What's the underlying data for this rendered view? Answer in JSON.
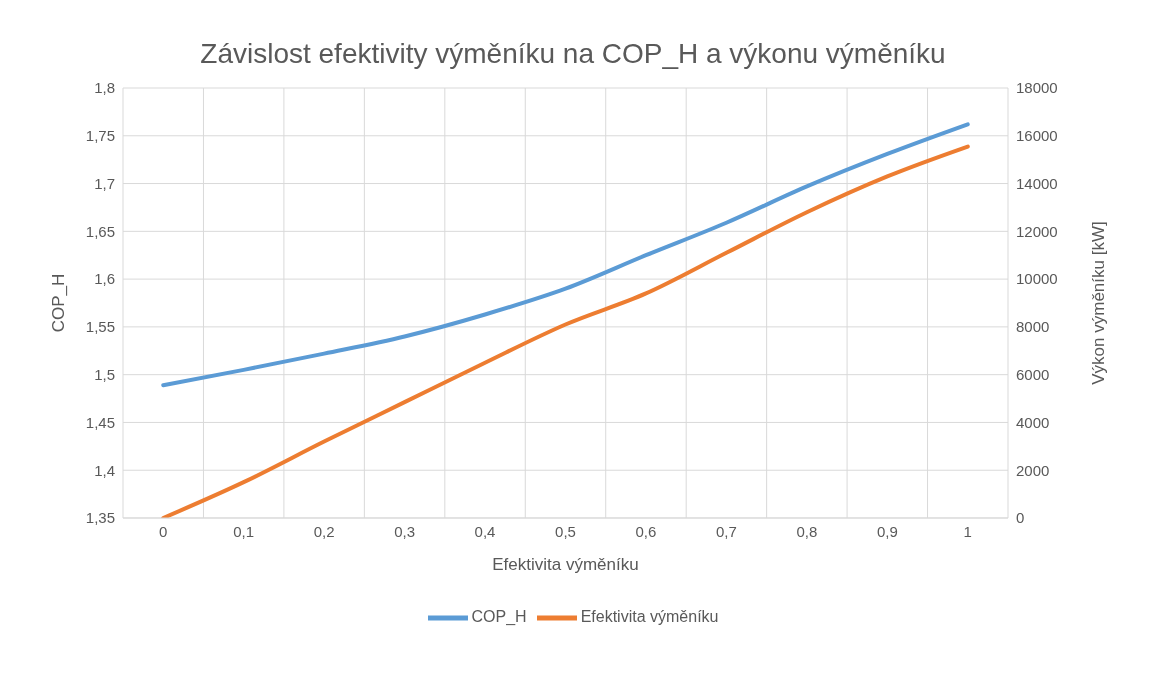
{
  "chart_data": {
    "type": "line",
    "title": "Závislost efektivity výměníku na COP_H a výkonu výměníku",
    "xlabel": "Efektivita výměníku",
    "ylabel": "COP_H",
    "y2label": "Výkon výměníku [kW]",
    "categories": [
      "0",
      "0,1",
      "0,2",
      "0,3",
      "0,4",
      "0,5",
      "0,6",
      "0,7",
      "0,8",
      "0,9",
      "1"
    ],
    "series": [
      {
        "name": "COP_H",
        "color": "#5b9bd5",
        "values": [
          1.489,
          1.505,
          1.522,
          1.54,
          1.563,
          1.59,
          1.625,
          1.659,
          1.697,
          1.731,
          1.762
        ]
      },
      {
        "name": "Efektivita výměníku",
        "color": "#ed7d31",
        "axis": "y2",
        "values": [
          0,
          1500,
          3200,
          4850,
          6500,
          8100,
          9400,
          11100,
          12800,
          14300,
          15550
        ]
      }
    ],
    "ylim": [
      1.35,
      1.8
    ],
    "yticks": [
      {
        "value": 1.35,
        "label": "1,35"
      },
      {
        "value": 1.4,
        "label": "1,4"
      },
      {
        "value": 1.45,
        "label": "1,45"
      },
      {
        "value": 1.5,
        "label": "1,5"
      },
      {
        "value": 1.55,
        "label": "1,55"
      },
      {
        "value": 1.6,
        "label": "1,6"
      },
      {
        "value": 1.65,
        "label": "1,65"
      },
      {
        "value": 1.7,
        "label": "1,7"
      },
      {
        "value": 1.75,
        "label": "1,75"
      },
      {
        "value": 1.8,
        "label": "1,8"
      }
    ],
    "y2lim": [
      0,
      18000
    ],
    "y2ticks": [
      0,
      2000,
      4000,
      6000,
      8000,
      10000,
      12000,
      14000,
      16000,
      18000
    ],
    "grid": true,
    "legend": "bottom",
    "marker": "none",
    "line_style": "solid"
  }
}
